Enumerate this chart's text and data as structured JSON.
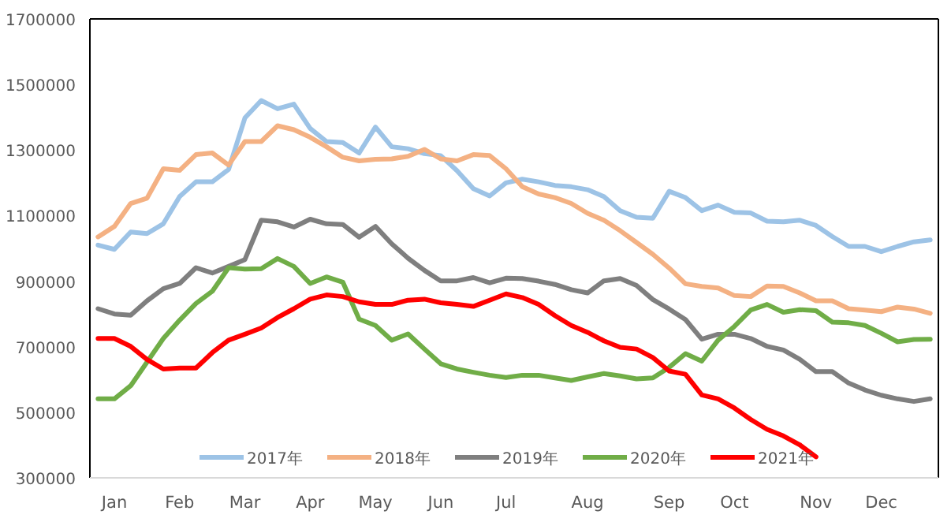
{
  "chart_data": {
    "type": "line",
    "categories": [
      null,
      "Jan",
      null,
      null,
      null,
      "Feb",
      null,
      null,
      null,
      "Mar",
      null,
      null,
      null,
      "Apr",
      null,
      null,
      null,
      "May",
      null,
      null,
      null,
      "Jun",
      null,
      null,
      null,
      "Jul",
      null,
      null,
      null,
      null,
      "Aug",
      null,
      null,
      null,
      null,
      "Sep",
      null,
      null,
      null,
      "Oct",
      null,
      null,
      null,
      null,
      "Nov",
      null,
      null,
      null,
      "Dec",
      null,
      null,
      null
    ],
    "series": [
      {
        "name": "2017年",
        "color": "#9dc3e6",
        "values": [
          1010000,
          997000,
          1050000,
          1045000,
          1075000,
          1158000,
          1203000,
          1203000,
          1241000,
          1398000,
          1451000,
          1426000,
          1440000,
          1366000,
          1326000,
          1323000,
          1291000,
          1370000,
          1310000,
          1304000,
          1289000,
          1283000,
          1237000,
          1182000,
          1160000,
          1200000,
          1211000,
          1203000,
          1192000,
          1188000,
          1179000,
          1158000,
          1115000,
          1095000,
          1092000,
          1174000,
          1155000,
          1115000,
          1132000,
          1110000,
          1108000,
          1083000,
          1081000,
          1086000,
          1070000,
          1036000,
          1006000,
          1006000,
          990000,
          1006000,
          1020000,
          1026000
        ]
      },
      {
        "name": "2018年",
        "color": "#f4b183",
        "values": [
          1035000,
          1067000,
          1137000,
          1153000,
          1243000,
          1238000,
          1286000,
          1291000,
          1254000,
          1326000,
          1326000,
          1374000,
          1362000,
          1339000,
          1310000,
          1278000,
          1267000,
          1272000,
          1273000,
          1281000,
          1302000,
          1273000,
          1267000,
          1286000,
          1283000,
          1243000,
          1188000,
          1166000,
          1155000,
          1137000,
          1107000,
          1086000,
          1054000,
          1018000,
          982000,
          940000,
          892000,
          884000,
          879000,
          856000,
          853000,
          885000,
          884000,
          864000,
          840000,
          840000,
          816000,
          812000,
          807000,
          821000,
          815000,
          802000
        ]
      },
      {
        "name": "2019年",
        "color": "#7f7f7f",
        "values": [
          816000,
          800000,
          796000,
          840000,
          877000,
          893000,
          941000,
          925000,
          945000,
          966000,
          1086000,
          1081000,
          1065000,
          1089000,
          1075000,
          1073000,
          1034000,
          1067000,
          1014000,
          970000,
          933000,
          901000,
          901000,
          911000,
          895000,
          909000,
          908000,
          900000,
          890000,
          874000,
          864000,
          901000,
          908000,
          887000,
          844000,
          815000,
          783000,
          723000,
          738000,
          738000,
          725000,
          701000,
          690000,
          662000,
          624000,
          624000,
          589000,
          568000,
          552000,
          541000,
          533000,
          541000
        ]
      },
      {
        "name": "2020年",
        "color": "#70ad47",
        "values": [
          541000,
          541000,
          581000,
          653000,
          725000,
          781000,
          832000,
          869000,
          941000,
          937000,
          938000,
          969000,
          945000,
          893000,
          913000,
          897000,
          784000,
          765000,
          720000,
          739000,
          693000,
          648000,
          632000,
          622000,
          613000,
          606000,
          613000,
          613000,
          605000,
          597000,
          608000,
          618000,
          611000,
          602000,
          605000,
          637000,
          679000,
          656000,
          720000,
          762000,
          812000,
          829000,
          805000,
          813000,
          810000,
          775000,
          773000,
          765000,
          741000,
          715000,
          722000,
          723000
        ]
      },
      {
        "name": "2021年",
        "color": "#ff0000",
        "values": [
          725000,
          725000,
          701000,
          661000,
          632000,
          635000,
          635000,
          682000,
          720000,
          738000,
          757000,
          789000,
          816000,
          845000,
          858000,
          853000,
          837000,
          829000,
          829000,
          842000,
          845000,
          834000,
          829000,
          823000,
          842000,
          861000,
          850000,
          829000,
          795000,
          765000,
          744000,
          718000,
          698000,
          693000,
          667000,
          626000,
          616000,
          553000,
          541000,
          513000,
          478000,
          448000,
          428000,
          401000,
          364000,
          null,
          null,
          null,
          null,
          null,
          null,
          null
        ]
      }
    ],
    "ylim": [
      300000,
      1700000
    ],
    "yticks": [
      300000,
      500000,
      700000,
      900000,
      1100000,
      1300000,
      1500000,
      1700000
    ],
    "legend": "bottom"
  }
}
